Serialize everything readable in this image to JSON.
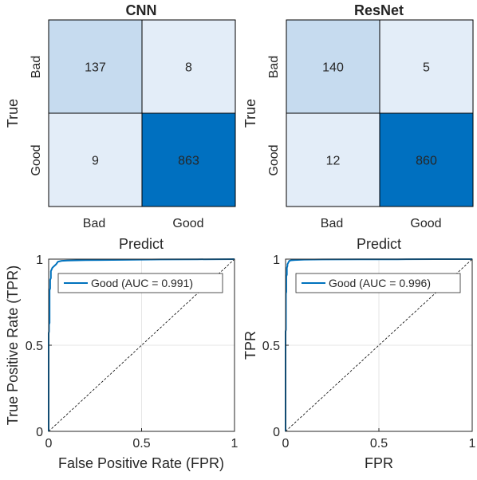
{
  "chart_data": [
    {
      "type": "heatmap",
      "title": "CNN",
      "xlabel": "Predict",
      "ylabel": "True",
      "x_categories": [
        "Bad",
        "Good"
      ],
      "y_categories": [
        "Bad",
        "Good"
      ],
      "values": [
        [
          137,
          8
        ],
        [
          9,
          863
        ]
      ],
      "colors": [
        [
          "#c6dbef",
          "#e3edf8"
        ],
        [
          "#e3edf8",
          "#0070c0"
        ]
      ]
    },
    {
      "type": "heatmap",
      "title": "ResNet",
      "xlabel": "Predict",
      "ylabel": "True",
      "x_categories": [
        "Bad",
        "Good"
      ],
      "y_categories": [
        "Bad",
        "Good"
      ],
      "values": [
        [
          140,
          5
        ],
        [
          12,
          860
        ]
      ],
      "colors": [
        [
          "#c6dbef",
          "#e3edf8"
        ],
        [
          "#e3edf8",
          "#0070c0"
        ]
      ]
    },
    {
      "type": "line",
      "title": "",
      "xlabel": "False Positive Rate (FPR)",
      "ylabel": "True Positive Rate (TPR)",
      "xlim": [
        0,
        1
      ],
      "ylim": [
        0,
        1
      ],
      "xticks": [
        "0",
        "0.5",
        "1"
      ],
      "yticks": [
        "0",
        "0.5",
        "1"
      ],
      "grid": true,
      "legend_position": "top-right",
      "series": [
        {
          "name": "Good (AUC = 0.991)",
          "color": "#0072bd",
          "x": [
            0,
            0,
            0.002,
            0.002,
            0.005,
            0.005,
            0.008,
            0.008,
            0.012,
            0.012,
            0.02,
            0.03,
            0.04,
            0.05,
            0.07,
            0.1,
            0.2,
            0.4,
            0.6,
            0.8,
            1.0
          ],
          "y": [
            0,
            0.57,
            0.58,
            0.62,
            0.63,
            0.82,
            0.83,
            0.88,
            0.89,
            0.93,
            0.95,
            0.96,
            0.97,
            0.985,
            0.99,
            0.992,
            0.994,
            0.996,
            0.998,
            0.999,
            1.0
          ]
        }
      ],
      "reference_line": {
        "x": [
          0,
          1
        ],
        "y": [
          0,
          1
        ],
        "style": "dashed",
        "color": "#000000"
      }
    },
    {
      "type": "line",
      "title": "",
      "xlabel": "FPR",
      "ylabel": "TPR",
      "xlim": [
        0,
        1
      ],
      "ylim": [
        0,
        1
      ],
      "xticks": [
        "0",
        "0.5",
        "1"
      ],
      "yticks": [
        "0",
        "0.5",
        "1"
      ],
      "grid": true,
      "legend_position": "top-right",
      "series": [
        {
          "name": "Good (AUC = 0.996)",
          "color": "#0072bd",
          "x": [
            0,
            0,
            0.002,
            0.002,
            0.004,
            0.004,
            0.007,
            0.007,
            0.01,
            0.01,
            0.015,
            0.02,
            0.03,
            0.05,
            0.1,
            0.2,
            0.4,
            0.6,
            0.8,
            1.0
          ],
          "y": [
            0,
            0.58,
            0.59,
            0.8,
            0.81,
            0.9,
            0.91,
            0.95,
            0.96,
            0.97,
            0.98,
            0.99,
            0.993,
            0.995,
            0.997,
            0.998,
            0.999,
            0.999,
            1.0,
            1.0
          ]
        }
      ],
      "reference_line": {
        "x": [
          0,
          1
        ],
        "y": [
          0,
          1
        ],
        "style": "dashed",
        "color": "#000000"
      }
    }
  ]
}
